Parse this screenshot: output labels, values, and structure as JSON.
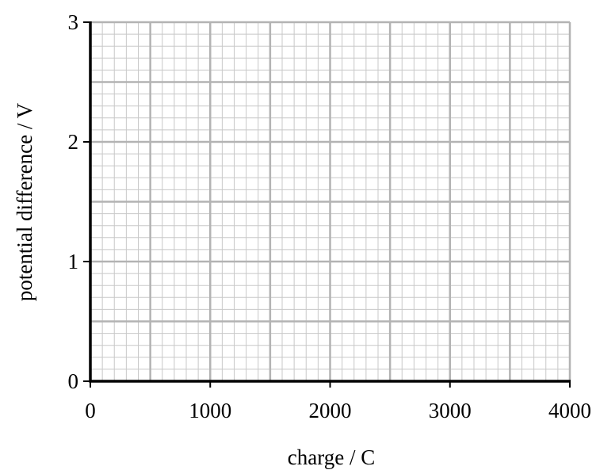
{
  "chart_data": {
    "type": "scatter",
    "title": "",
    "xlabel": "charge / C",
    "ylabel": "potential difference / V",
    "xlim": [
      0,
      4000
    ],
    "ylim": [
      0,
      3
    ],
    "x_ticks": [
      "0",
      "1000",
      "2000",
      "3000",
      "4000"
    ],
    "y_ticks": [
      "0",
      "1",
      "2",
      "3"
    ],
    "x_major_step": 500,
    "y_major_step": 0.5,
    "minor_divisions": 5,
    "grid": true,
    "series": [],
    "colors": {
      "axis": "#000000",
      "major_grid": "#b3b3b3",
      "minor_grid": "#c8c8c8"
    }
  }
}
